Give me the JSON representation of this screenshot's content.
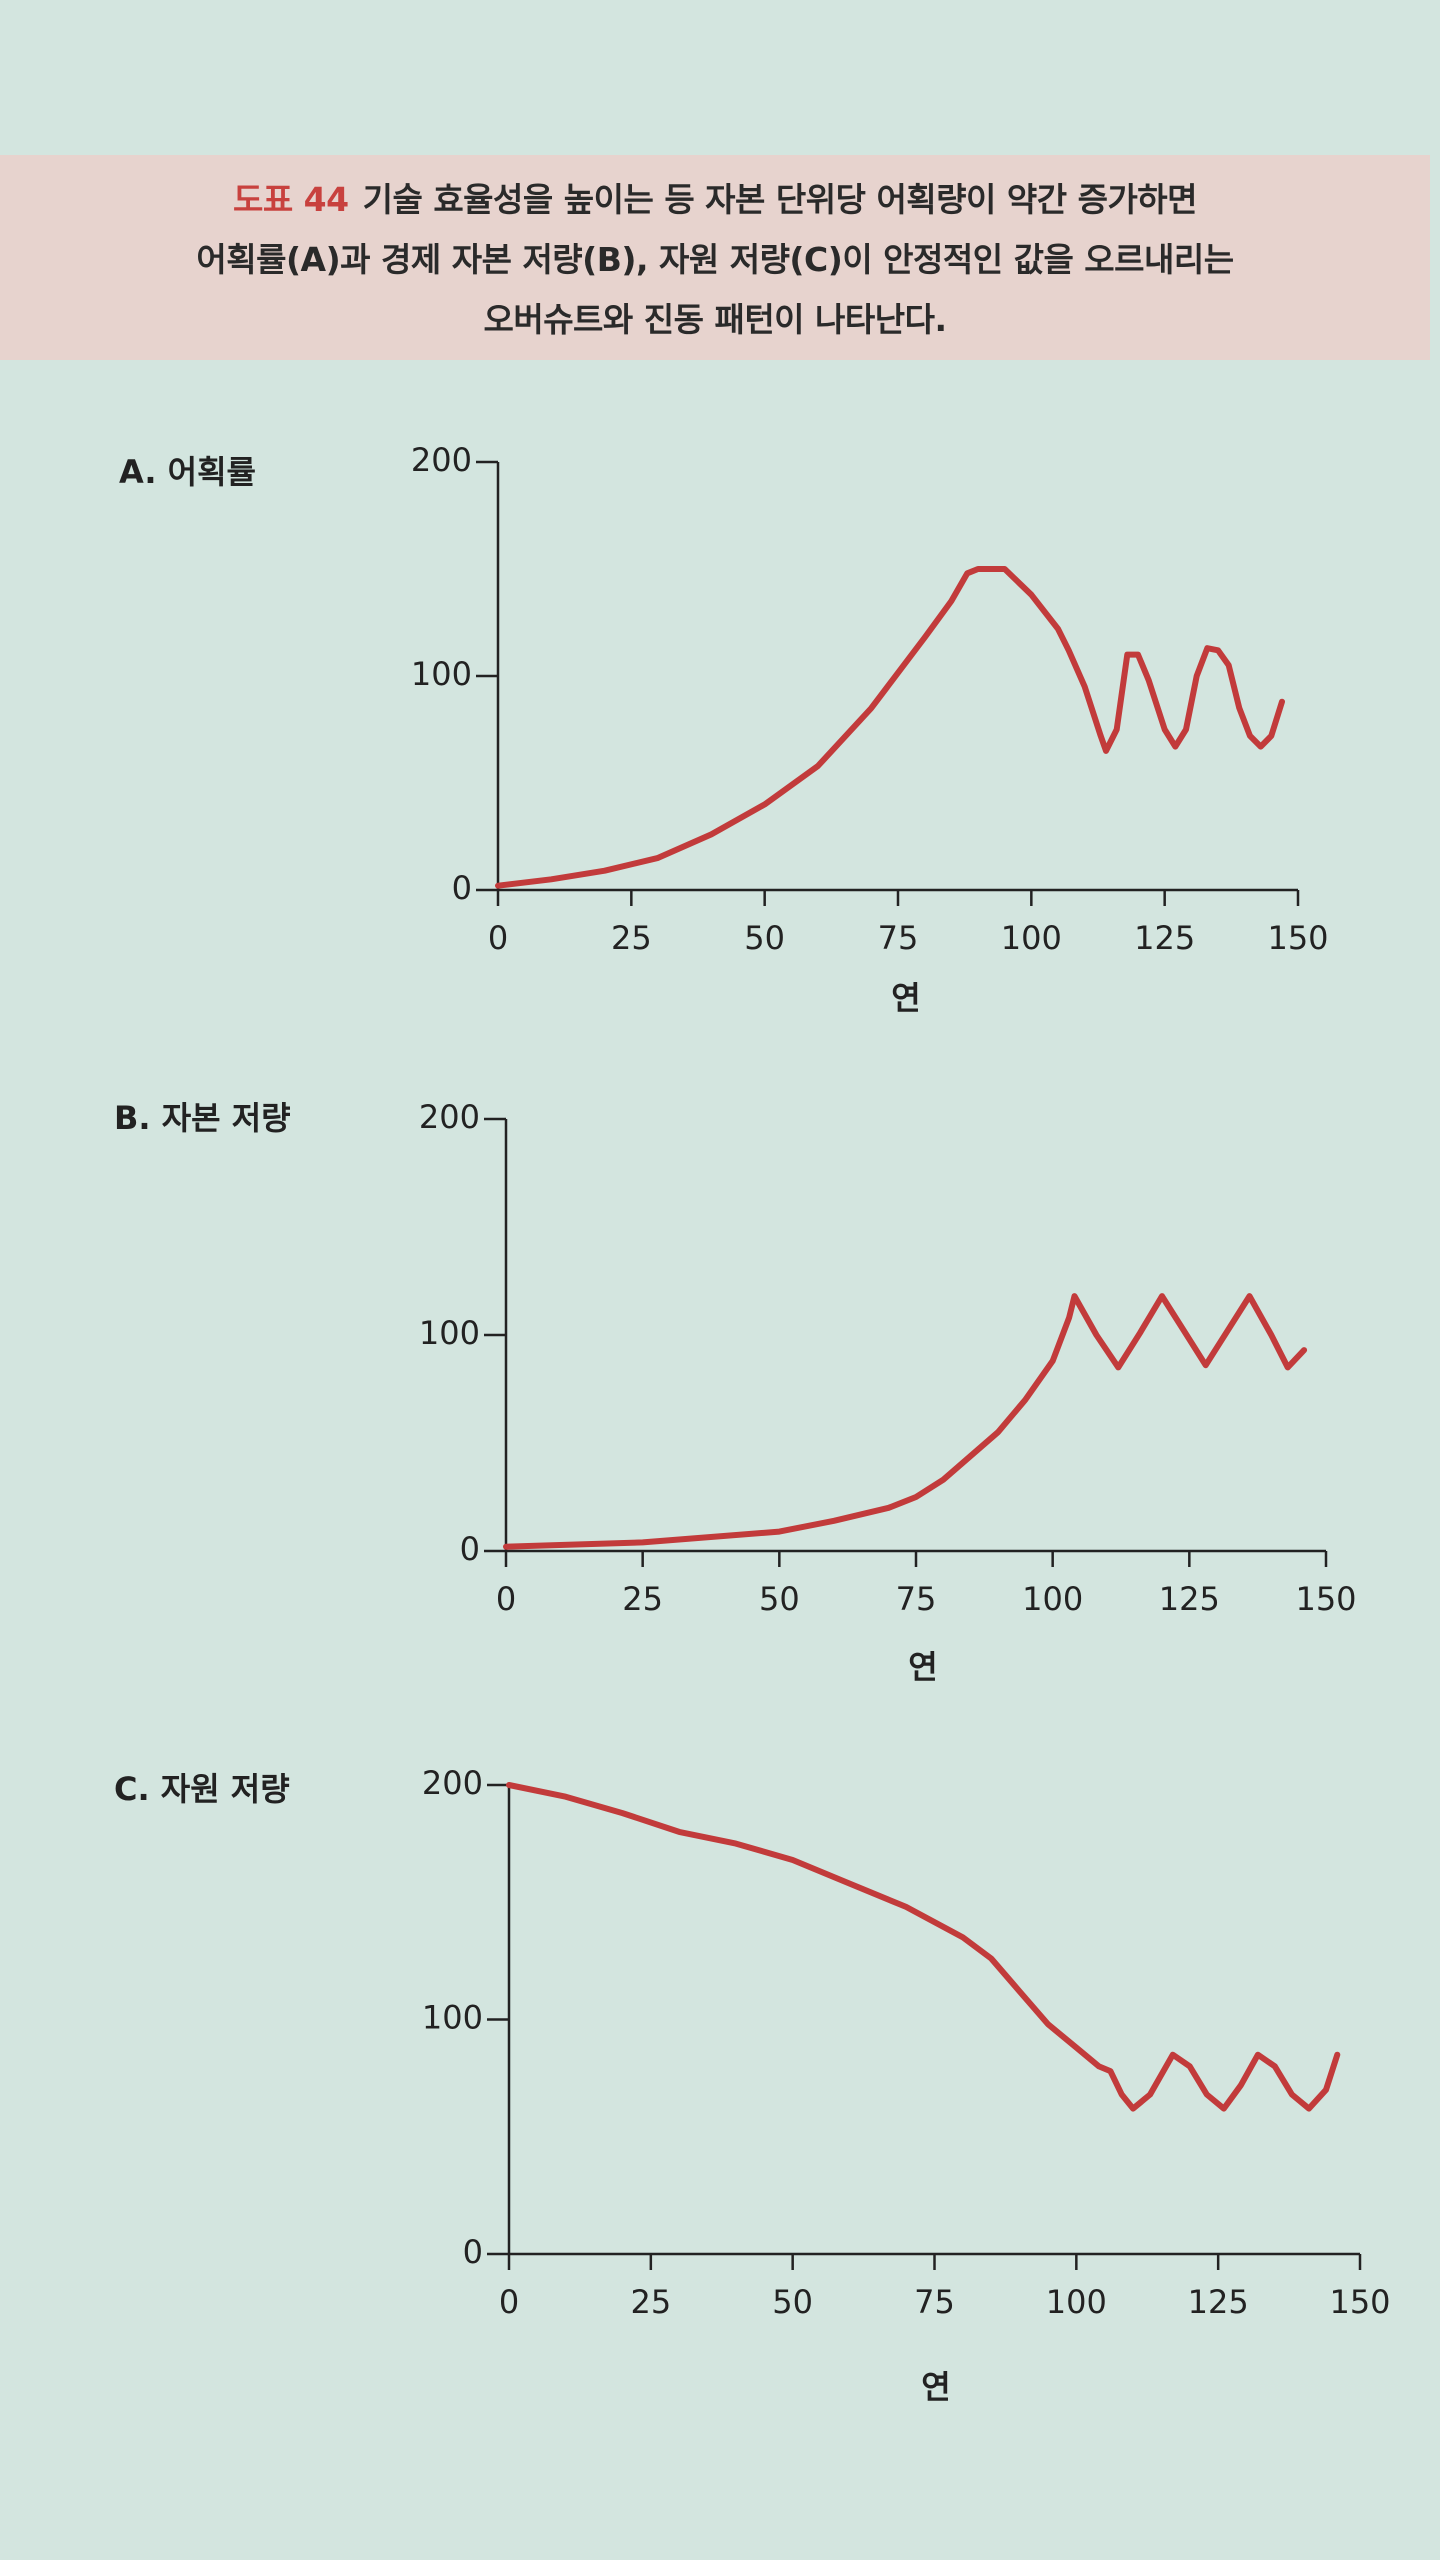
{
  "figure": {
    "number": "도표 44",
    "caption_lines": [
      "기술 효율성을 높이는 등 자본 단위당 어획량이 약간 증가하면",
      "어획률(A)과 경제 자본 저량(B), 자원 저량(C)이 안정적인 값을 오르내리는",
      "오버슈트와 진동 패턴이 나타난다."
    ]
  },
  "chart_data": [
    {
      "type": "line",
      "title": "A. 어획률",
      "xlabel": "연",
      "xlim": [
        0,
        150
      ],
      "xticks": [
        0,
        25,
        50,
        75,
        100,
        125,
        150
      ],
      "ylim": [
        0,
        200
      ],
      "yticks": [
        0,
        100,
        200
      ],
      "x": [
        0,
        10,
        20,
        30,
        40,
        50,
        60,
        70,
        80,
        85,
        88,
        90,
        95,
        100,
        105,
        107,
        110,
        113,
        114,
        116,
        118,
        120,
        122,
        125,
        127,
        129,
        131,
        133,
        135,
        137,
        139,
        141,
        143,
        145,
        147
      ],
      "series": [
        {
          "name": "어획률",
          "color": "#c23b3b",
          "values": [
            2,
            5,
            9,
            15,
            26,
            40,
            58,
            85,
            118,
            135,
            148,
            150,
            150,
            138,
            122,
            112,
            95,
            72,
            65,
            75,
            110,
            110,
            98,
            75,
            67,
            75,
            100,
            113,
            112,
            105,
            85,
            72,
            67,
            72,
            88
          ]
        }
      ]
    },
    {
      "type": "line",
      "title": "B. 자본 저량",
      "xlabel": "연",
      "xlim": [
        0,
        150
      ],
      "xticks": [
        0,
        25,
        50,
        75,
        100,
        125,
        150
      ],
      "ylim": [
        0,
        200
      ],
      "yticks": [
        0,
        100,
        200
      ],
      "x": [
        0,
        25,
        50,
        60,
        70,
        75,
        80,
        90,
        95,
        100,
        103,
        104,
        108,
        112,
        116,
        120,
        124,
        128,
        132,
        136,
        140,
        143,
        146
      ],
      "series": [
        {
          "name": "자본 저량",
          "color": "#c23b3b",
          "values": [
            2,
            4,
            9,
            14,
            20,
            25,
            33,
            55,
            70,
            88,
            108,
            118,
            100,
            85,
            101,
            118,
            102,
            86,
            102,
            118,
            100,
            85,
            93
          ]
        }
      ]
    },
    {
      "type": "line",
      "title": "C. 자원 저량",
      "xlabel": "연",
      "xlim": [
        0,
        150
      ],
      "xticks": [
        0,
        25,
        50,
        75,
        100,
        125,
        150
      ],
      "ylim": [
        0,
        200
      ],
      "yticks": [
        0,
        100,
        200
      ],
      "x": [
        0,
        10,
        20,
        30,
        40,
        50,
        60,
        70,
        80,
        85,
        90,
        95,
        100,
        104,
        106,
        108,
        110,
        113,
        117,
        120,
        123,
        126,
        129,
        132,
        135,
        138,
        141,
        144,
        146
      ],
      "series": [
        {
          "name": "자원 저량",
          "color": "#c23b3b",
          "values": [
            200,
            195,
            188,
            180,
            175,
            168,
            158,
            148,
            135,
            126,
            112,
            98,
            88,
            80,
            78,
            68,
            62,
            68,
            85,
            80,
            68,
            62,
            72,
            85,
            80,
            68,
            62,
            70,
            85
          ]
        }
      ]
    }
  ]
}
